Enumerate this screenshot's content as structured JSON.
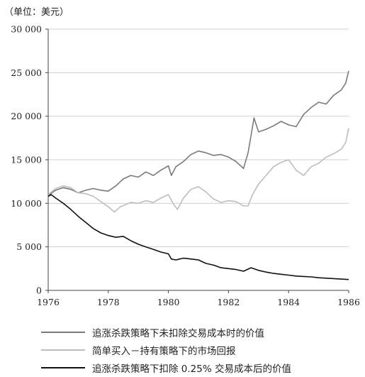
{
  "unit_label": "（单位：美元）",
  "chart_data": {
    "type": "line",
    "ylabel": "（单位：美元）",
    "xlim": [
      1976,
      1986
    ],
    "ylim": [
      0,
      30000
    ],
    "x_ticks": [
      1976,
      1978,
      1980,
      1982,
      1984,
      1986
    ],
    "x_tick_labels": [
      "1976",
      "1978",
      "1980",
      "1982",
      "1984",
      "1986"
    ],
    "y_ticks": [
      0,
      5000,
      10000,
      15000,
      20000,
      25000,
      30000
    ],
    "y_tick_labels": [
      "0",
      "5 000",
      "10 000",
      "15 000",
      "20 000",
      "25 000",
      "30 000"
    ],
    "grid": "horizontal",
    "legend_position": "bottom",
    "series": [
      {
        "name": "追涨杀跌策略下未扣除交易成本时的价值",
        "color": "#7a7a7a",
        "x": [
          1976.0,
          1976.25,
          1976.5,
          1976.75,
          1977.0,
          1977.25,
          1977.5,
          1977.75,
          1978.0,
          1978.25,
          1978.5,
          1978.75,
          1979.0,
          1979.25,
          1979.5,
          1979.75,
          1980.0,
          1980.1,
          1980.25,
          1980.5,
          1980.75,
          1981.0,
          1981.25,
          1981.5,
          1981.75,
          1982.0,
          1982.25,
          1982.5,
          1982.65,
          1982.75,
          1982.85,
          1983.0,
          1983.25,
          1983.5,
          1983.75,
          1984.0,
          1984.25,
          1984.5,
          1984.75,
          1985.0,
          1985.25,
          1985.5,
          1985.75,
          1985.9,
          1986.0
        ],
        "y": [
          10900,
          11500,
          11800,
          11600,
          11200,
          11500,
          11700,
          11500,
          11400,
          12000,
          12800,
          13200,
          13000,
          13600,
          13200,
          13800,
          14300,
          13200,
          14200,
          14800,
          15600,
          16000,
          15800,
          15500,
          15600,
          15300,
          14800,
          14000,
          15800,
          17800,
          19800,
          18200,
          18500,
          18900,
          19400,
          19000,
          18800,
          20200,
          21000,
          21600,
          21400,
          22400,
          23000,
          23800,
          25200
        ]
      },
      {
        "name": "简单买入－持有策略下的市场回报",
        "color": "#bdbdbd",
        "x": [
          1976.0,
          1976.25,
          1976.5,
          1976.75,
          1977.0,
          1977.25,
          1977.5,
          1977.75,
          1978.0,
          1978.2,
          1978.4,
          1978.75,
          1979.0,
          1979.25,
          1979.5,
          1979.75,
          1980.0,
          1980.15,
          1980.3,
          1980.5,
          1980.75,
          1981.0,
          1981.25,
          1981.5,
          1981.75,
          1982.0,
          1982.25,
          1982.5,
          1982.65,
          1982.8,
          1983.0,
          1983.25,
          1983.5,
          1983.75,
          1984.0,
          1984.25,
          1984.5,
          1984.75,
          1985.0,
          1985.25,
          1985.5,
          1985.75,
          1985.9,
          1986.0
        ],
        "y": [
          11000,
          11700,
          12000,
          11800,
          11200,
          11100,
          10800,
          10200,
          9600,
          9000,
          9600,
          10100,
          10000,
          10300,
          10100,
          10600,
          11000,
          10000,
          9300,
          10600,
          11600,
          11900,
          11300,
          10500,
          10100,
          10300,
          10200,
          9700,
          9700,
          11000,
          12200,
          13200,
          14200,
          14700,
          15000,
          13800,
          13200,
          14200,
          14600,
          15300,
          15700,
          16200,
          17000,
          18600
        ]
      },
      {
        "name": "追涨杀跌策略下扣除 0.25% 交易成本后的价值",
        "color": "#111111",
        "x": [
          1976.0,
          1976.1,
          1976.25,
          1976.5,
          1976.75,
          1977.0,
          1977.25,
          1977.5,
          1977.75,
          1978.0,
          1978.25,
          1978.5,
          1978.75,
          1979.0,
          1979.25,
          1979.5,
          1979.75,
          1980.0,
          1980.1,
          1980.25,
          1980.5,
          1980.75,
          1981.0,
          1981.25,
          1981.5,
          1981.75,
          1982.0,
          1982.25,
          1982.5,
          1982.75,
          1983.0,
          1983.25,
          1983.5,
          1983.75,
          1984.0,
          1984.25,
          1984.5,
          1984.75,
          1985.0,
          1985.25,
          1985.5,
          1985.75,
          1986.0
        ],
        "y": [
          10800,
          11000,
          10600,
          10000,
          9300,
          8500,
          7800,
          7100,
          6600,
          6300,
          6100,
          6200,
          5700,
          5300,
          5000,
          4700,
          4400,
          4200,
          3600,
          3500,
          3700,
          3600,
          3500,
          3100,
          2900,
          2600,
          2500,
          2400,
          2200,
          2600,
          2300,
          2100,
          1950,
          1850,
          1750,
          1650,
          1600,
          1550,
          1450,
          1400,
          1350,
          1300,
          1250
        ]
      }
    ]
  }
}
